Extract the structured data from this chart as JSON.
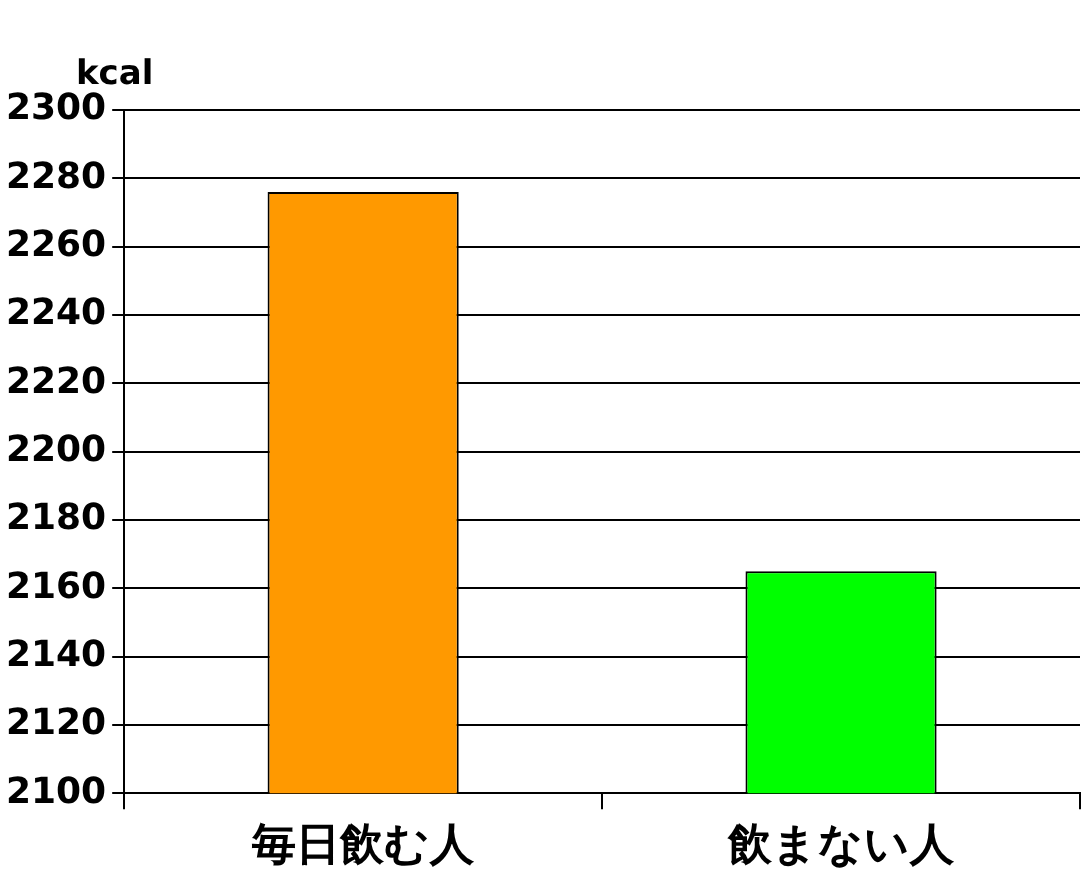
{
  "chart_data": {
    "type": "bar",
    "ylabel": "kcal",
    "categories": [
      "毎日飲む人",
      "飲まない人"
    ],
    "values": [
      2276,
      2165
    ],
    "colors": [
      "#ff9900",
      "#00ff00"
    ],
    "ylim": [
      2100,
      2300
    ],
    "yticks": [
      2100,
      2120,
      2140,
      2160,
      2180,
      2200,
      2220,
      2240,
      2260,
      2280,
      2300
    ],
    "grid": "y",
    "legend": false
  }
}
